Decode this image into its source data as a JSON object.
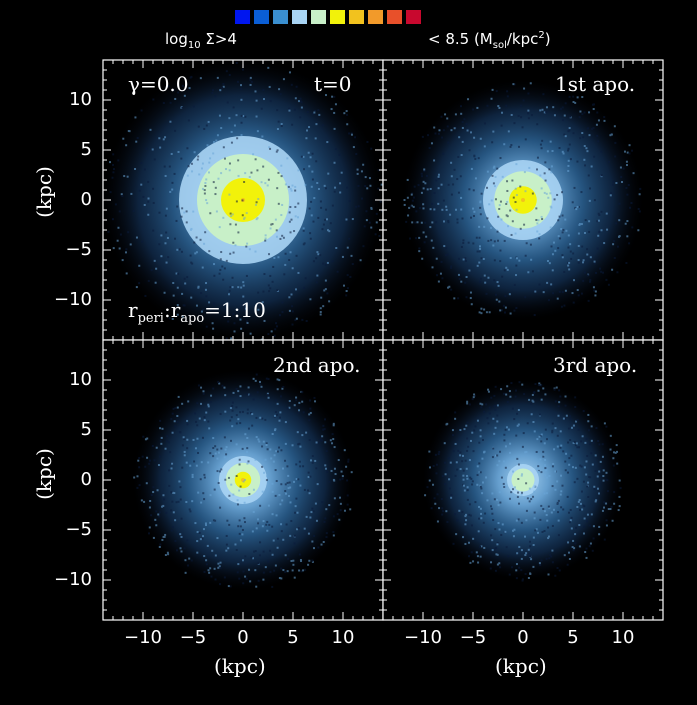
{
  "colorbar": {
    "colors": [
      "#0016f0",
      "#0a5ed6",
      "#3a8fd0",
      "#a8d4f4",
      "#c8f0c8",
      "#f2f20a",
      "#f2c21e",
      "#f29a2a",
      "#e8502a",
      "#c8082e"
    ],
    "label_left_prefix": "log",
    "label_left_sub": "10",
    "label_left_suffix": " Σ>4",
    "label_right_prefix": "< 8.5 (M",
    "label_right_sub": "sol",
    "label_right_mid": "/kpc",
    "label_right_sup": "2",
    "label_right_suffix": ")"
  },
  "chart_data": {
    "type": "heatmap",
    "xlabel": "(kpc)",
    "ylabel": "(kpc)",
    "xlim": [
      -14,
      14
    ],
    "ylim": [
      -14,
      14
    ],
    "xticks": [
      "−10",
      "−5",
      "0",
      "5",
      "10"
    ],
    "yticks": [
      "10",
      "5",
      "0",
      "−5",
      "−10"
    ],
    "panels": [
      {
        "id": "t0",
        "labels": [
          "γ=0.0",
          "t=0"
        ],
        "note": "r_peri:r_apo=1:10",
        "core_radius": 4.0,
        "halo_radius": 14,
        "peak_level": "yellow"
      },
      {
        "id": "apo1",
        "labels": [
          "1st apo."
        ],
        "core_radius": 2.5,
        "halo_radius": 12,
        "peak_level": "yellow"
      },
      {
        "id": "apo2",
        "labels": [
          "2nd apo."
        ],
        "core_radius": 1.5,
        "halo_radius": 11,
        "peak_level": "yellow"
      },
      {
        "id": "apo3",
        "labels": [
          "3rd apo."
        ],
        "core_radius": 1.0,
        "halo_radius": 10,
        "peak_level": "light green"
      }
    ]
  },
  "panel_labels": {
    "p1_gamma": "γ=0.0",
    "p1_time": "t=0",
    "p1_ratio_r1": "r",
    "p1_ratio_sub1": "peri",
    "p1_ratio_colon": ":r",
    "p1_ratio_sub2": "apo",
    "p1_ratio_val": "=1:10",
    "p2": "1st apo.",
    "p3": "2nd apo.",
    "p4": "3rd apo."
  },
  "axes": {
    "xlabel": "(kpc)",
    "ylabel": "(kpc)"
  }
}
